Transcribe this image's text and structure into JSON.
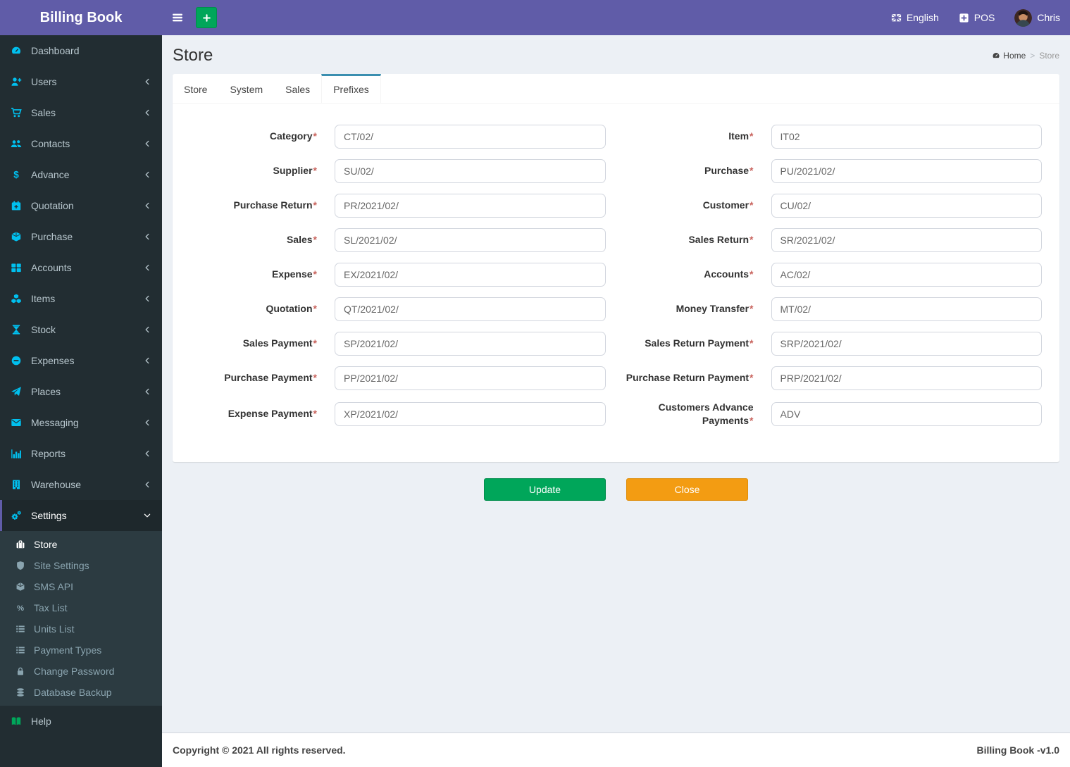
{
  "app": {
    "title": "Billing Book",
    "copyright": "Copyright © 2021 All rights reserved.",
    "version_label": "Billing Book -v1.0"
  },
  "navbar": {
    "hamburger_icon": "bars-icon",
    "quick_add_icon": "plus-icon",
    "language": {
      "label": "English",
      "icon": "flag-icon"
    },
    "pos": {
      "label": "POS",
      "icon": "plus-square-icon"
    },
    "user": {
      "name": "Chris",
      "icon": "avatar"
    }
  },
  "page": {
    "title": "Store",
    "breadcrumb": {
      "home": "Home",
      "separator": ">",
      "current": "Store",
      "icon": "home-dashboard-icon"
    }
  },
  "tabs": [
    {
      "label": "Store",
      "active": false
    },
    {
      "label": "System",
      "active": false
    },
    {
      "label": "Sales",
      "active": false
    },
    {
      "label": "Prefixes",
      "active": true
    }
  ],
  "form": {
    "required_mark": "*",
    "fields": [
      {
        "label": "Category",
        "value": "CT/02/",
        "required": true
      },
      {
        "label": "Item",
        "value": "IT02",
        "required": true
      },
      {
        "label": "Supplier",
        "value": "SU/02/",
        "required": true
      },
      {
        "label": "Purchase",
        "value": "PU/2021/02/",
        "required": true
      },
      {
        "label": "Purchase Return",
        "value": "PR/2021/02/",
        "required": true
      },
      {
        "label": "Customer",
        "value": "CU/02/",
        "required": true
      },
      {
        "label": "Sales",
        "value": "SL/2021/02/",
        "required": true
      },
      {
        "label": "Sales Return",
        "value": "SR/2021/02/",
        "required": true
      },
      {
        "label": "Expense",
        "value": "EX/2021/02/",
        "required": true
      },
      {
        "label": "Accounts",
        "value": "AC/02/",
        "required": true
      },
      {
        "label": "Quotation",
        "value": "QT/2021/02/",
        "required": true
      },
      {
        "label": "Money Transfer",
        "value": "MT/02/",
        "required": true
      },
      {
        "label": "Sales Payment",
        "value": "SP/2021/02/",
        "required": true
      },
      {
        "label": "Sales Return Payment",
        "value": "SRP/2021/02/",
        "required": true
      },
      {
        "label": "Purchase Payment",
        "value": "PP/2021/02/",
        "required": true
      },
      {
        "label": "Purchase Return Payment",
        "value": "PRP/2021/02/",
        "required": true
      },
      {
        "label": "Expense Payment",
        "value": "XP/2021/02/",
        "required": true
      },
      {
        "label": "Customers Advance Payments",
        "value": "ADV",
        "required": true
      }
    ]
  },
  "actions": {
    "update": "Update",
    "close": "Close"
  },
  "sidebar": {
    "items": [
      {
        "label": "Dashboard",
        "icon": "tachometer-icon",
        "chevron": null
      },
      {
        "label": "Users",
        "icon": "user-plus-icon",
        "chevron": "left"
      },
      {
        "label": "Sales",
        "icon": "cart-icon",
        "chevron": "left"
      },
      {
        "label": "Contacts",
        "icon": "users-icon",
        "chevron": "left"
      },
      {
        "label": "Advance",
        "icon": "dollar-icon",
        "chevron": "left"
      },
      {
        "label": "Quotation",
        "icon": "calendar-plus-icon",
        "chevron": "left"
      },
      {
        "label": "Purchase",
        "icon": "cube-icon",
        "chevron": "left"
      },
      {
        "label": "Accounts",
        "icon": "th-large-icon",
        "chevron": "left"
      },
      {
        "label": "Items",
        "icon": "cubes-icon",
        "chevron": "left"
      },
      {
        "label": "Stock",
        "icon": "hourglass-icon",
        "chevron": "left"
      },
      {
        "label": "Expenses",
        "icon": "minus-circle-icon",
        "chevron": "left"
      },
      {
        "label": "Places",
        "icon": "paper-plane-icon",
        "chevron": "left"
      },
      {
        "label": "Messaging",
        "icon": "envelope-icon",
        "chevron": "left"
      },
      {
        "label": "Reports",
        "icon": "bar-chart-icon",
        "chevron": "left"
      },
      {
        "label": "Warehouse",
        "icon": "building-icon",
        "chevron": "left"
      },
      {
        "label": "Settings",
        "icon": "gears-icon",
        "chevron": "down",
        "active": true,
        "children": [
          {
            "label": "Store",
            "icon": "suitcase-icon",
            "active": true
          },
          {
            "label": "Site Settings",
            "icon": "shield-icon",
            "active": false
          },
          {
            "label": "SMS API",
            "icon": "cube-icon",
            "active": false
          },
          {
            "label": "Tax List",
            "icon": "percent-icon",
            "active": false
          },
          {
            "label": "Units List",
            "icon": "list-icon",
            "active": false
          },
          {
            "label": "Payment Types",
            "icon": "list-icon",
            "active": false
          },
          {
            "label": "Change Password",
            "icon": "lock-icon",
            "active": false
          },
          {
            "label": "Database Backup",
            "icon": "database-icon",
            "active": false
          }
        ]
      },
      {
        "label": "Help",
        "icon": "book-icon",
        "chevron": null,
        "help": true
      }
    ]
  },
  "colors": {
    "navbar_purple": "#605ca8",
    "sidebar_bg": "#222d32",
    "submenu_bg": "#2c3b41",
    "sidebar_icon_cyan": "#00c0ef",
    "success_green": "#00a65a",
    "warning_orange": "#f39c12",
    "active_tab_accent": "#3b8fb0",
    "required_mark_red": "#c9645e"
  }
}
